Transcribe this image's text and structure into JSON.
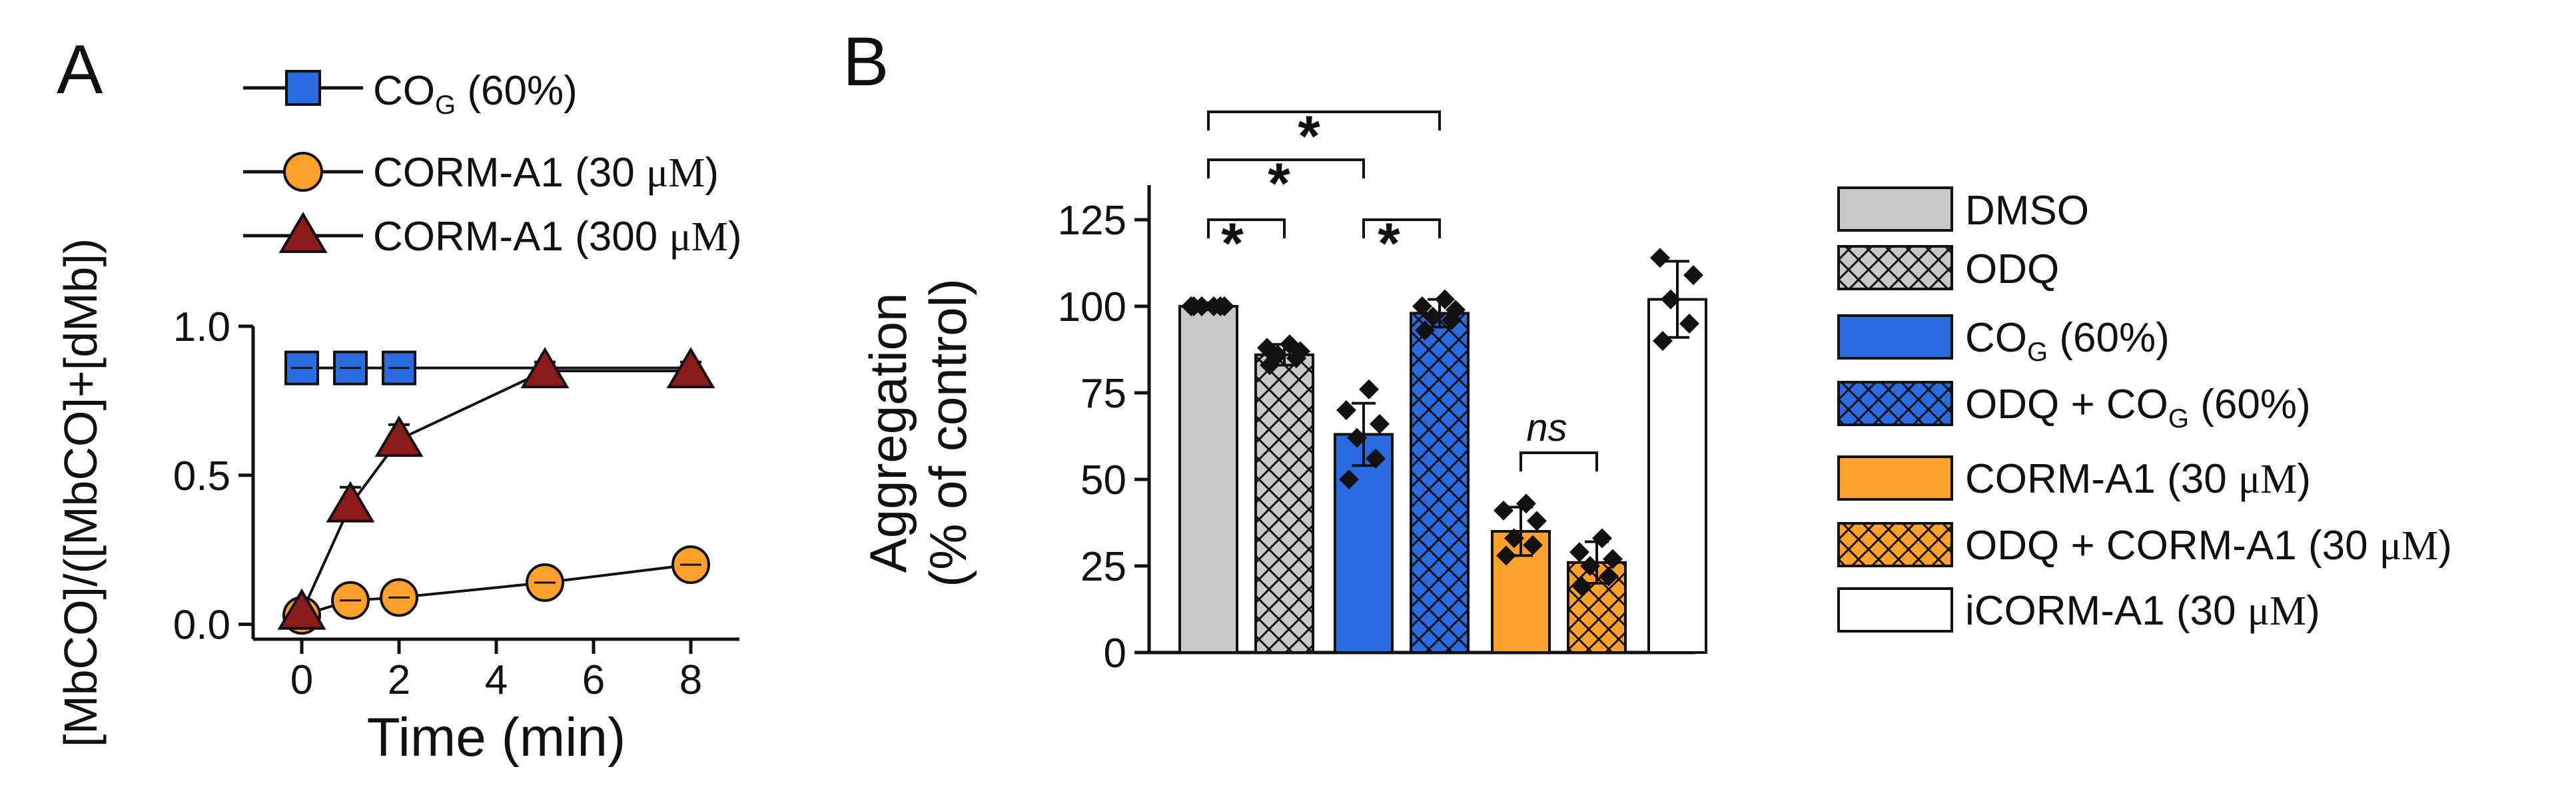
{
  "panel_a": {
    "panel_label": "A",
    "legend": [
      {
        "key": "cog",
        "main": "CO",
        "sub": "G",
        "rest": " (60%)"
      },
      {
        "key": "corm30",
        "main": "CORM-A1 (30 ",
        "mu": "μM",
        "rest": ")"
      },
      {
        "key": "corm300",
        "main": "CORM-A1 (300 ",
        "mu": "μM",
        "rest": ")"
      }
    ]
  },
  "panel_b": {
    "panel_label": "B",
    "significance_marks": [
      "*",
      "*",
      "*",
      "*"
    ],
    "ns_label": "ns",
    "legend": [
      {
        "key": "dmso",
        "main": "DMSO"
      },
      {
        "key": "odq",
        "main": "ODQ"
      },
      {
        "key": "cog",
        "main": "CO",
        "sub": "G",
        "rest": " (60%)"
      },
      {
        "key": "odq_cog",
        "main": "ODQ + CO",
        "sub": "G",
        "rest": " (60%)"
      },
      {
        "key": "corm",
        "main": "CORM-A1 (30 ",
        "mu": "μM",
        "rest": ")"
      },
      {
        "key": "odq_corm",
        "main": "ODQ + CORM-A1 (30 ",
        "mu": "μM",
        "rest": ")"
      },
      {
        "key": "icorm",
        "main": "iCORM-A1 (30 ",
        "mu": "μM",
        "rest": ")"
      }
    ]
  },
  "colors": {
    "blue": "#2a6be0",
    "orange": "#ffa02a",
    "darkred": "#8b1a1a",
    "gray": "#c8c8c8",
    "white": "#ffffff",
    "ink": "#111111"
  },
  "chart_data": [
    {
      "type": "line",
      "xlabel": "Time (min)",
      "ylabel": "[MbCO]/([MbCO]+[dMb])",
      "xlim": [
        -1,
        9
      ],
      "ylim": [
        -0.05,
        1.0
      ],
      "xticks": [
        0,
        2,
        4,
        6,
        8
      ],
      "yticks": [
        0.0,
        0.5,
        1.0
      ],
      "ytick_labels": [
        "0.0",
        "0.5",
        "1.0"
      ],
      "series": [
        {
          "name": "COG (60%)",
          "marker": "square",
          "color": "#2a6be0",
          "x": [
            0,
            1,
            2
          ],
          "y": [
            0.86,
            0.86,
            0.86
          ],
          "err": [
            0.02,
            0.02,
            0.02
          ]
        },
        {
          "name": "CORM-A1 (30 μM)",
          "marker": "circle",
          "color": "#ffa02a",
          "x": [
            0,
            1,
            2,
            5,
            8
          ],
          "y": [
            0.03,
            0.08,
            0.09,
            0.14,
            0.2
          ],
          "err": [
            0.02,
            0.02,
            0.02,
            0.03,
            0.03
          ]
        },
        {
          "name": "CORM-A1 (300 μM)",
          "marker": "triangle",
          "color": "#8b1a1a",
          "x": [
            0,
            1,
            2,
            5,
            8
          ],
          "y": [
            0.04,
            0.4,
            0.62,
            0.85,
            0.85
          ],
          "err": [
            0.02,
            0.06,
            0.05,
            0.03,
            0.03
          ]
        }
      ],
      "reference_line": {
        "name": "COG (60%) continuation",
        "x": [
          2,
          5,
          8
        ],
        "y": [
          0.86,
          0.86,
          0.86
        ]
      }
    },
    {
      "type": "bar",
      "ylabel_lines": [
        "Aggregation",
        "(% of control)"
      ],
      "ylim": [
        0,
        135
      ],
      "yticks": [
        0,
        25,
        50,
        75,
        100,
        125
      ],
      "categories": [
        "DMSO",
        "ODQ",
        "COG (60%)",
        "ODQ + COG (60%)",
        "CORM-A1 (30 μM)",
        "ODQ + CORM-A1 (30 μM)",
        "iCORM-A1 (30 μM)"
      ],
      "values": [
        100,
        86,
        63,
        98,
        35,
        26,
        102
      ],
      "errors": [
        1,
        3,
        9,
        4,
        7,
        6,
        11
      ],
      "fills": [
        "#c8c8c8",
        "#c8c8c8",
        "#2a6be0",
        "#2a6be0",
        "#ffa02a",
        "#ffa02a",
        "#ffffff"
      ],
      "hatched": [
        false,
        true,
        false,
        true,
        false,
        true,
        false
      ],
      "points": [
        [
          100,
          100,
          100,
          100,
          100,
          100
        ],
        [
          83,
          85,
          86,
          87,
          88,
          89
        ],
        [
          50,
          56,
          62,
          66,
          70,
          76
        ],
        [
          93,
          96,
          97,
          99,
          100,
          102
        ],
        [
          28,
          31,
          33,
          38,
          41,
          43
        ],
        [
          19,
          22,
          25,
          27,
          29,
          33
        ],
        [
          90,
          95,
          102,
          109,
          114
        ]
      ],
      "comparisons": [
        {
          "bars": [
            0,
            1
          ],
          "label": "*"
        },
        {
          "bars": [
            2,
            3
          ],
          "label": "*"
        },
        {
          "bars": [
            0,
            2
          ],
          "label": "*"
        },
        {
          "bars": [
            0,
            3
          ],
          "label": "*"
        },
        {
          "bars": [
            4,
            5
          ],
          "label": "ns"
        }
      ]
    }
  ]
}
